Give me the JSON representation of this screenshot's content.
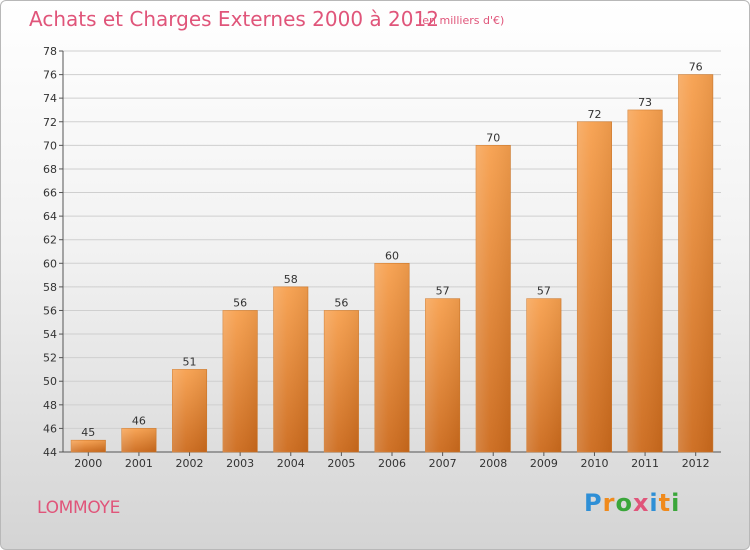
{
  "chart_data": {
    "type": "bar",
    "title": "Achats et Charges Externes 2000 à 2012",
    "subtitle": "(en milliers d'€)",
    "categories": [
      "2000",
      "2001",
      "2002",
      "2003",
      "2004",
      "2005",
      "2006",
      "2007",
      "2008",
      "2009",
      "2010",
      "2011",
      "2012"
    ],
    "values": [
      45,
      46,
      51,
      56,
      58,
      56,
      60,
      57,
      70,
      57,
      72,
      73,
      76
    ],
    "ylim": [
      44,
      78
    ],
    "yticks": [
      44,
      46,
      48,
      50,
      52,
      54,
      56,
      58,
      60,
      62,
      64,
      66,
      68,
      70,
      72,
      74,
      76,
      78
    ],
    "grid": true,
    "bar_color_top": "#f7a04e",
    "bar_color_bottom": "#cc6a1c"
  },
  "footer": {
    "commune": "LOMMOYE",
    "logo_letters": [
      {
        "char": "P",
        "color": "#2e8fd6"
      },
      {
        "char": "r",
        "color": "#f08a1c"
      },
      {
        "char": "o",
        "color": "#3aa63a"
      },
      {
        "char": "x",
        "color": "#e0557a"
      },
      {
        "char": "i",
        "color": "#2e8fd6"
      },
      {
        "char": "t",
        "color": "#f08a1c"
      },
      {
        "char": "i",
        "color": "#3aa63a"
      }
    ]
  }
}
